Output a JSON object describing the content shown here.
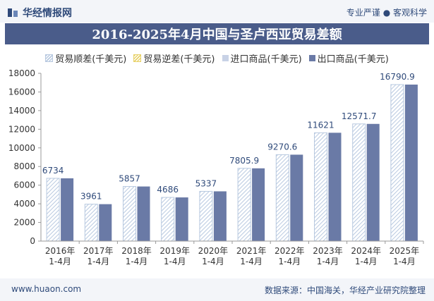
{
  "header": {
    "brand": "华经情报网",
    "slogan": "专业严谨 ● 客观科学"
  },
  "footer": {
    "url": "www.huaon.com",
    "source": "数据来源：中国海关，华经产业研究院整理"
  },
  "colors": {
    "surplus": "#b8c9e0",
    "deficit": "#e8d26a",
    "import": "#c8d2e6",
    "export": "#6a7aa6",
    "title_bg": "#4a5c8a"
  },
  "chart_data": {
    "type": "bar",
    "title": "2016-2025年4月中国与圣卢西亚贸易差额",
    "legend": [
      "贸易顺差(千美元)",
      "贸易逆差(千美元)",
      "进口商品(千美元)",
      "出口商品(千美元)"
    ],
    "categories": [
      "2016年\n1-4月",
      "2017年\n1-4月",
      "2018年\n1-4月",
      "2019年\n1-4月",
      "2020年\n1-4月",
      "2021年\n1-4月",
      "2022年\n1-4月",
      "2023年\n1-4月",
      "2024年\n1-4月",
      "2025年\n1-4月"
    ],
    "series": [
      {
        "name": "贸易顺差(千美元)",
        "values": [
          6734,
          3961,
          5857,
          4686,
          5337,
          7805.9,
          9270.6,
          11621,
          12571.7,
          16790.9
        ]
      },
      {
        "name": "出口商品(千美元)",
        "values": [
          6734,
          3961,
          5857,
          4686,
          5337,
          7805.9,
          9270.6,
          11621,
          12571.7,
          16790.9
        ]
      }
    ],
    "labels": [
      "6734",
      "3961",
      "5857",
      "4686",
      "5337",
      "7805.9",
      "9270.6",
      "11621",
      "12571.7",
      "16790.9"
    ],
    "yticks": [
      "0",
      "2000",
      "4000",
      "6000",
      "8000",
      "10000",
      "12000",
      "14000",
      "16000",
      "18000"
    ],
    "ylim": [
      0,
      18000
    ],
    "grid": false,
    "legend_position": "top"
  }
}
